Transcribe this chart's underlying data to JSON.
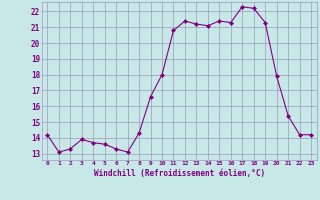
{
  "x": [
    0,
    1,
    2,
    3,
    4,
    5,
    6,
    7,
    8,
    9,
    10,
    11,
    12,
    13,
    14,
    15,
    16,
    17,
    18,
    19,
    20,
    21,
    22,
    23
  ],
  "y": [
    14.2,
    13.1,
    13.3,
    13.9,
    13.7,
    13.6,
    13.3,
    13.1,
    14.3,
    16.6,
    18.0,
    20.8,
    21.4,
    21.2,
    21.1,
    21.4,
    21.3,
    22.3,
    22.2,
    21.3,
    17.9,
    15.4,
    14.2,
    14.2
  ],
  "line_color": "#800080",
  "marker": "D",
  "marker_size": 2,
  "bg_color": "#c8e8e8",
  "grid_color": "#9999bb",
  "xlabel": "Windchill (Refroidissement éolien,°C)",
  "xlabel_color": "#800080",
  "tick_color": "#800080",
  "ylim": [
    12.6,
    22.6
  ],
  "yticks": [
    13,
    14,
    15,
    16,
    17,
    18,
    19,
    20,
    21,
    22
  ],
  "xlim": [
    -0.5,
    23.5
  ],
  "xticks": [
    0,
    1,
    2,
    3,
    4,
    5,
    6,
    7,
    8,
    9,
    10,
    11,
    12,
    13,
    14,
    15,
    16,
    17,
    18,
    19,
    20,
    21,
    22,
    23
  ]
}
